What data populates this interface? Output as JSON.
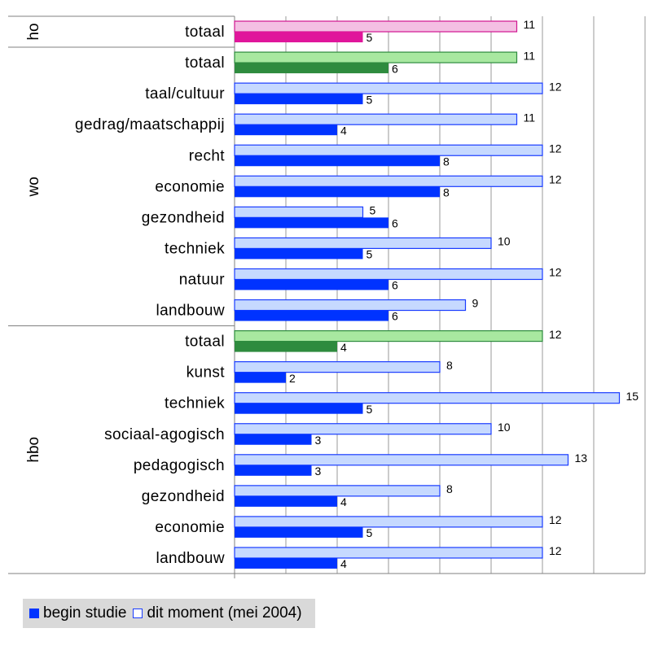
{
  "chart_data": {
    "type": "bar",
    "orientation": "horizontal",
    "xlim": [
      0,
      16
    ],
    "xticks": [
      "0",
      "2",
      "4",
      "6",
      "8",
      "10",
      "12",
      "14",
      "16"
    ],
    "grid": true,
    "legend_position": "bottom-left",
    "series": [
      {
        "name": "begin studie",
        "color": "#0033ff"
      },
      {
        "name": "dit moment (mei 2004)",
        "color": "#c6d9ff",
        "edge": "#1a3cff"
      }
    ],
    "groups": [
      {
        "name": "ho",
        "rows": [
          {
            "label": "totaal",
            "begin": 5,
            "moment": 11,
            "begin_label": "5",
            "moment_label": "11",
            "begin_color": "#e0169b",
            "moment_color": "#f4bfe3",
            "edge": "#d01690"
          }
        ]
      },
      {
        "name": "wo",
        "rows": [
          {
            "label": "totaal",
            "begin": 6,
            "moment": 11,
            "begin_label": "6",
            "moment_label": "11",
            "begin_color": "#2e8b3e",
            "moment_color": "#a8e8a0",
            "edge": "#2e8b3e"
          },
          {
            "label": "taal/cultuur",
            "begin": 5,
            "moment": 12,
            "begin_label": "5",
            "moment_label": "12"
          },
          {
            "label": "gedrag/maatschappij",
            "begin": 4,
            "moment": 11,
            "begin_label": "4",
            "moment_label": "11"
          },
          {
            "label": "recht",
            "begin": 8,
            "moment": 12,
            "begin_label": "8",
            "moment_label": "12"
          },
          {
            "label": "economie",
            "begin": 8,
            "moment": 12,
            "begin_label": "8",
            "moment_label": "12"
          },
          {
            "label": "gezondheid",
            "begin": 6,
            "moment": 5,
            "begin_label": "6",
            "moment_label": "5"
          },
          {
            "label": "techniek",
            "begin": 5,
            "moment": 10,
            "begin_label": "5",
            "moment_label": "10"
          },
          {
            "label": "natuur",
            "begin": 6,
            "moment": 12,
            "begin_label": "6",
            "moment_label": "12"
          },
          {
            "label": "landbouw",
            "begin": 6,
            "moment": 9,
            "begin_label": "6",
            "moment_label": "9"
          }
        ]
      },
      {
        "name": "hbo",
        "rows": [
          {
            "label": "totaal",
            "begin": 4,
            "moment": 12,
            "begin_label": "4",
            "moment_label": "12",
            "begin_color": "#2e8b3e",
            "moment_color": "#a8e8a0",
            "edge": "#2e8b3e"
          },
          {
            "label": "kunst",
            "begin": 2,
            "moment": 8,
            "begin_label": "2",
            "moment_label": "8"
          },
          {
            "label": "techniek",
            "begin": 5,
            "moment": 15,
            "begin_label": "5",
            "moment_label": "15"
          },
          {
            "label": "sociaal-agogisch",
            "begin": 3,
            "moment": 10,
            "begin_label": "3",
            "moment_label": "10"
          },
          {
            "label": "pedagogisch",
            "begin": 3,
            "moment": 13,
            "begin_label": "3",
            "moment_label": "13"
          },
          {
            "label": "gezondheid",
            "begin": 4,
            "moment": 8,
            "begin_label": "4",
            "moment_label": "8"
          },
          {
            "label": "economie",
            "begin": 5,
            "moment": 12,
            "begin_label": "5",
            "moment_label": "12"
          },
          {
            "label": "landbouw",
            "begin": 4,
            "moment": 12,
            "begin_label": "4",
            "moment_label": "12"
          }
        ]
      }
    ]
  },
  "legend": {
    "begin_label": "begin studie",
    "moment_label": "dit moment (mei 2004)"
  }
}
